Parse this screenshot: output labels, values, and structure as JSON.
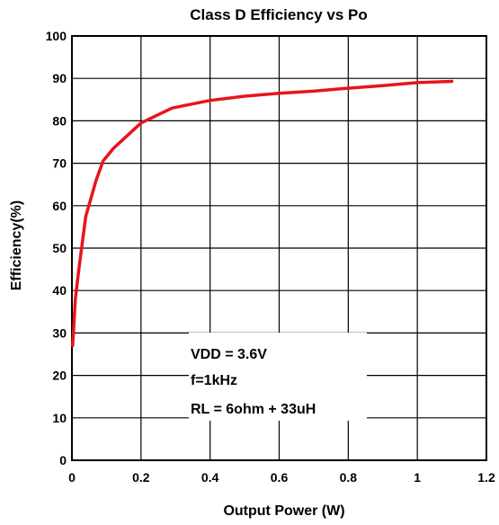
{
  "chart_data": {
    "type": "line",
    "title": "Class D Efficiency vs Po",
    "xlabel": "Output Power (W)",
    "ylabel": "Efficiency(%)",
    "xlim": [
      0,
      1.2
    ],
    "ylim": [
      0,
      100
    ],
    "grid": true,
    "xticks": [
      0,
      0.2,
      0.4,
      0.6,
      0.8,
      1,
      1.2
    ],
    "xtick_labels": [
      "0",
      "0.2",
      "0.4",
      "0.6",
      "0.8",
      "1",
      "1.2"
    ],
    "yticks": [
      0,
      10,
      20,
      30,
      40,
      50,
      60,
      70,
      80,
      90,
      100
    ],
    "ytick_labels": [
      "0",
      "10",
      "20",
      "30",
      "40",
      "50",
      "60",
      "70",
      "80",
      "90",
      "100"
    ],
    "series": [
      {
        "color": "#e8141c",
        "x": [
          0.002,
          0.01,
          0.02,
          0.04,
          0.07,
          0.09,
          0.12,
          0.2,
          0.29,
          0.4,
          0.5,
          0.6,
          0.7,
          0.8,
          0.9,
          1.0,
          1.1
        ],
        "y": [
          27,
          38,
          45,
          57.5,
          66,
          70.5,
          73.5,
          79.5,
          83,
          84.8,
          85.8,
          86.5,
          87,
          87.7,
          88.3,
          89,
          89.3
        ]
      }
    ],
    "annotations": [
      "VDD = 3.6V",
      "f=1kHz",
      "RL = 6ohm + 33uH"
    ]
  }
}
